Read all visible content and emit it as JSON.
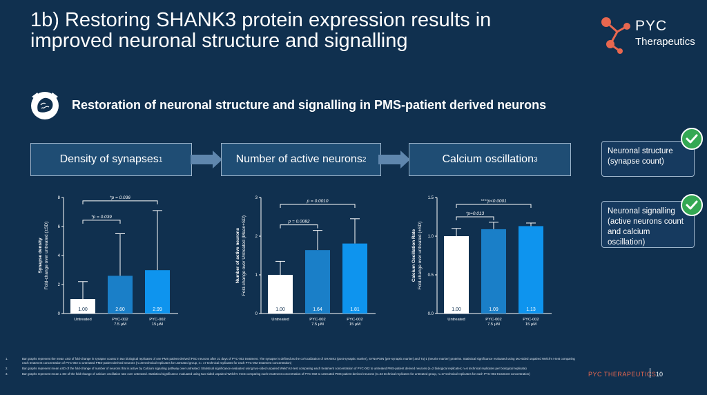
{
  "title": "1b) Restoring SHANK3 protein expression results in improved neuronal structure and signalling",
  "logo": {
    "line1": "PYC",
    "line2": "Therapeutics"
  },
  "subtitle": "Restoration of neuronal structure and signalling in PMS-patient derived neurons",
  "headers": [
    {
      "label": "Density of synapses",
      "sup": "1"
    },
    {
      "label": "Number of active neurons",
      "sup": "2"
    },
    {
      "label": "Calcium oscillation",
      "sup": "3"
    }
  ],
  "side_boxes": [
    {
      "text": "Neuronal structure (synapse count)"
    },
    {
      "text": "Neuronal signalling (active neurons count and calcium oscillation)"
    }
  ],
  "colors": {
    "white_bar": "#ffffff",
    "bar2": "#1a7fc8",
    "bar3": "#0e94ee",
    "accent": "#e8674f",
    "check": "#34a853"
  },
  "chart_data": [
    {
      "type": "bar",
      "categories": [
        "Untreated",
        "PYC-002\n7.5 µM",
        "PYC-002\n15 µM"
      ],
      "values": [
        1.0,
        2.6,
        2.99
      ],
      "value_labels": [
        "1.00",
        "2.60",
        "2.99"
      ],
      "error_upper": [
        2.2,
        5.5,
        7.1
      ],
      "ylabel": "Synapse density\nFold-change over untreated (±SD)",
      "ylim": [
        0,
        8
      ],
      "yticks": [
        "0",
        "2",
        "4",
        "6",
        "8"
      ],
      "significance": [
        {
          "label": "*p = 0.039",
          "from": 0,
          "to": 1
        },
        {
          "label": "*p = 0.036",
          "from": 0,
          "to": 2
        }
      ]
    },
    {
      "type": "bar",
      "categories": [
        "Untreated",
        "PYC-002\n7.5 µM",
        "PYC-002\n15 µM"
      ],
      "values": [
        1.0,
        1.64,
        1.81
      ],
      "value_labels": [
        "1.00",
        "1.64",
        "1.81"
      ],
      "error_upper": [
        1.35,
        2.15,
        2.45
      ],
      "ylabel": "Number of active neurons\nFold-change over Untreated (Mean+SD)",
      "ylim": [
        0,
        3
      ],
      "yticks": [
        "0",
        "1",
        "2",
        "3"
      ],
      "significance": [
        {
          "label": "p = 0.0082",
          "from": 0,
          "to": 1
        },
        {
          "label": "p = 0.0010",
          "from": 0,
          "to": 2
        }
      ]
    },
    {
      "type": "bar",
      "categories": [
        "Untreated",
        "PYC-002\n7.5 µM",
        "PYC-002\n15 µM"
      ],
      "values": [
        1.0,
        1.09,
        1.13
      ],
      "value_labels": [
        "1.00",
        "1.09",
        "1.13"
      ],
      "error_upper": [
        1.1,
        1.18,
        1.17
      ],
      "ylabel": "Calcium Oscillation Rate\nFold-change over untreated (±SD)",
      "ylim": [
        0,
        1.5
      ],
      "yticks": [
        "0.0",
        "0.5",
        "1.0",
        "1.5"
      ],
      "significance": [
        {
          "label": "*p=0.013",
          "from": 0,
          "to": 1
        },
        {
          "label": "****p<0.0001",
          "from": 0,
          "to": 2
        }
      ]
    }
  ],
  "footnotes": [
    {
      "num": "1.",
      "text": "Bar graphs represent the mean ±SD of fold-change in synapse counts in two biological replicates of one PMS patient-derived iPSC-neurons after 21 days of PYC-002 treatment. The synapse is defined as the co-localization of SHANK3 (post-synaptic marker), SYNAPSIN (pre-synaptic marker) and Tuj-1 (neurite marker) proteins. Statistical significance evaluated using two-sided unpaired Welch's t-test comparing each treatment concentration of PYC-002 to untreated PMS-patient derived neurons (n=20 technical replicates for untreated group, n= 17 technical replicates for each PYC-002 treatment concentration)"
    },
    {
      "num": "2.",
      "text": "Bar graphs represent mean ±SD of the fold-change of number of neurons that is active by Calcium signaling pathway over untreated. Statistical significance evaluated using two-sided unpaired Welch's t-test comparing each treatment concentration of PYC-002 to untreated PMS-patient derived neurons (n=2 biological replicates; n=6 technical replicates per biological replicate)"
    },
    {
      "num": "3.",
      "text": "Bar graphs represent mean ± SD of the fold-change of calcium oscillation rate over untreated. Statistical significance evaluated using two-sided unpaired Welch's t-test comparing each treatment concentration of PYC-002 to untreated PMS-patient derived neurons (n=23 technical replicates for untreated group, n=17 technical replicates for each PYC-002 treatment concentration)"
    }
  ],
  "footer": {
    "brand": "PYC THERAPEUTICS",
    "page": "10"
  }
}
